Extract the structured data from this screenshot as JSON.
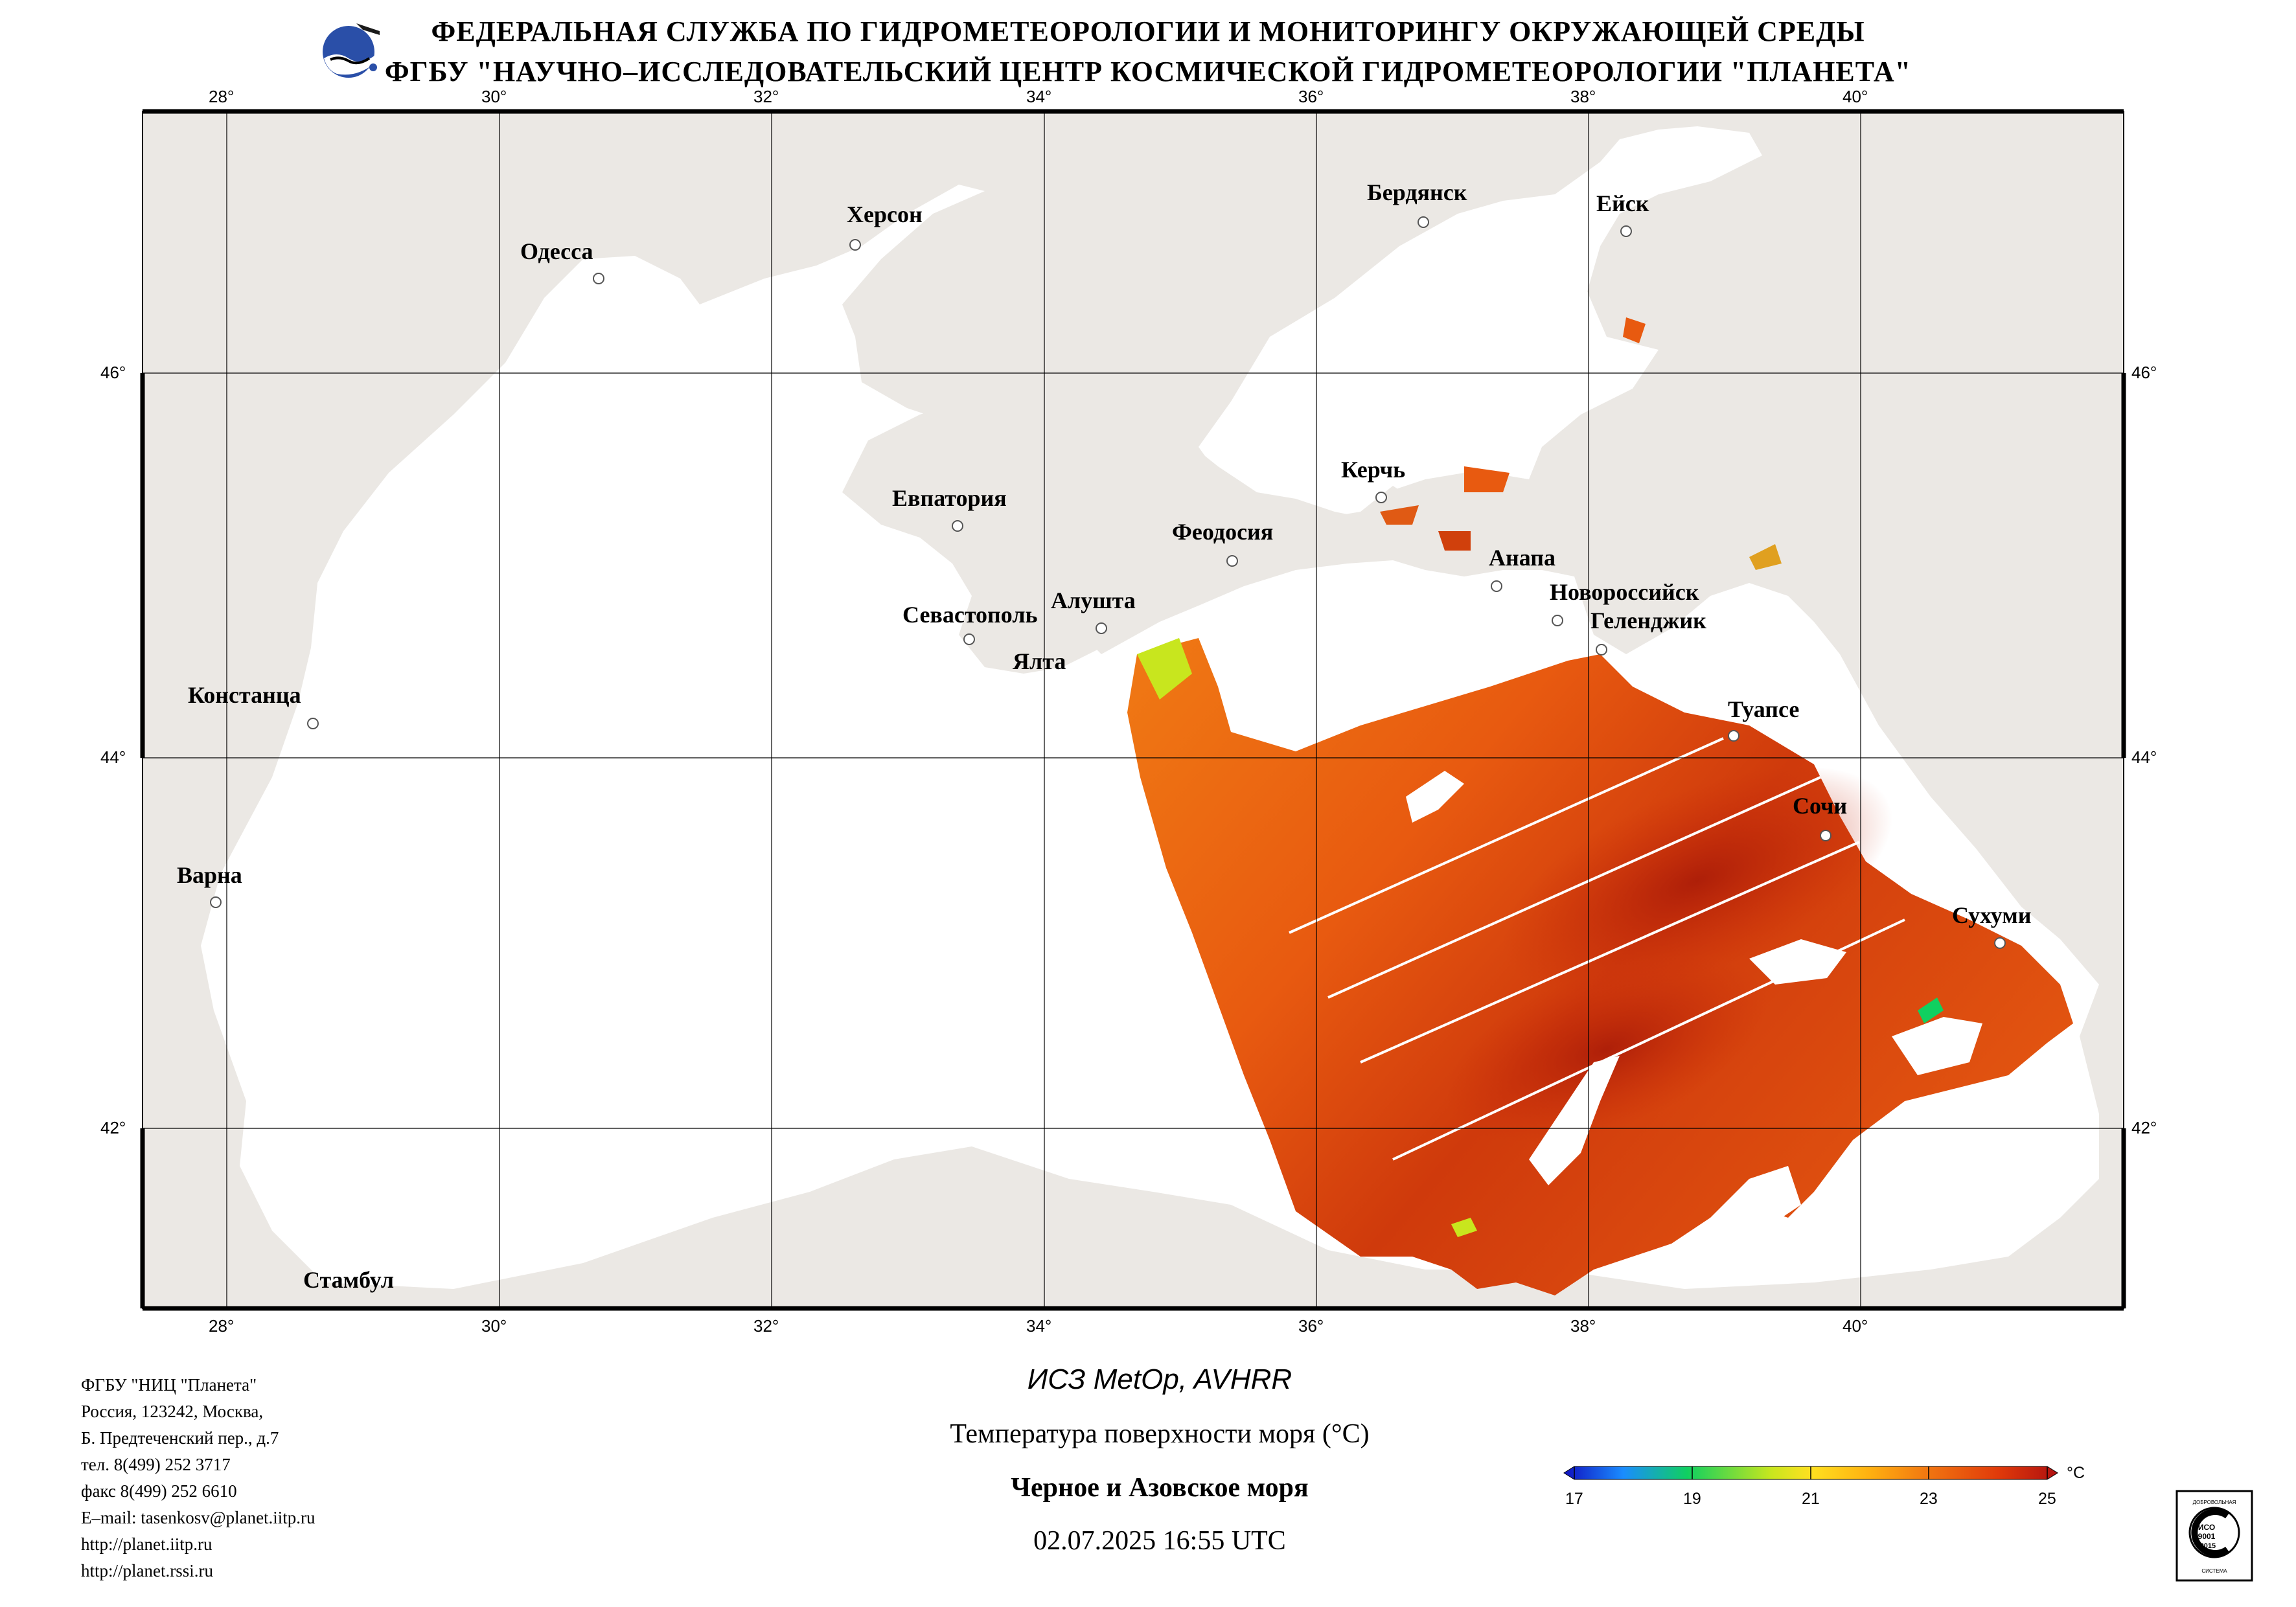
{
  "header": {
    "line1": "ФЕДЕРАЛЬНАЯ СЛУЖБА ПО ГИДРОМЕТЕОРОЛОГИИ И МОНИТОРИНГУ ОКРУЖАЮЩЕЙ СРЕДЫ",
    "line2": "ФГБУ \"НАУЧНО–ИССЛЕДОВАТЕЛЬСКИЙ ЦЕНТР КОСМИЧЕСКОЙ ГИДРОМЕТЕОРОЛОГИИ \"ПЛАНЕТА\""
  },
  "map": {
    "longitude_ticks": [
      "28°",
      "30°",
      "32°",
      "34°",
      "36°",
      "38°",
      "40°"
    ],
    "latitude_ticks": [
      "46°",
      "44°",
      "42°"
    ],
    "cities": {
      "odessa": "Одесса",
      "kherson": "Херсон",
      "berdyansk": "Бердянск",
      "yeysk": "Ейск",
      "kerch": "Керчь",
      "evpatoria": "Евпатория",
      "feodosia": "Феодосия",
      "anapa": "Анапа",
      "novorossiysk": "Новороссийск",
      "gelendzhik": "Геленджик",
      "sevastopol": "Севастополь",
      "alushta": "Алушта",
      "yalta": "Ялта",
      "constanta": "Констанца",
      "tuapse": "Туапсе",
      "sochi": "Сочи",
      "varna": "Варна",
      "sukhumi": "Сухуми",
      "istanbul": "Стамбул"
    },
    "colors": {
      "land": "#ebe8e4",
      "sea": "#ffffff",
      "sst_warm": "#e85a10",
      "sst_hot": "#c02408"
    }
  },
  "organization": {
    "lines": [
      "ФГБУ \"НИЦ \"Планета\"",
      "Россия, 123242, Москва,",
      "Б. Предтеченский пер., д.7",
      "тел. 8(499) 252 3717",
      "факс 8(499) 252 6610",
      "E–mail: tasenkosv@planet.iitp.ru",
      "http://planet.iitp.ru",
      "http://planet.rssi.ru"
    ]
  },
  "caption": {
    "satellite": "ИСЗ MetOp, AVHRR",
    "parameter": "Температура поверхности моря (°С)",
    "region": "Черное и Азовское моря",
    "datetime": "02.07.2025 16:55 UTC"
  },
  "colorbar": {
    "unit": "°С",
    "ticks": [
      "17",
      "19",
      "21",
      "23",
      "25"
    ],
    "colors": [
      "#1010c0",
      "#1a8cff",
      "#10d060",
      "#c8e61e",
      "#ffe020",
      "#ffb010",
      "#f07010",
      "#e03a0a",
      "#b01010"
    ]
  },
  "iso_badge": {
    "text_main": "ИСО 9001 -2015",
    "text_ring": "ДОБРОВОЛЬНАЯ СЕРТИФИКАЦИЯ"
  }
}
